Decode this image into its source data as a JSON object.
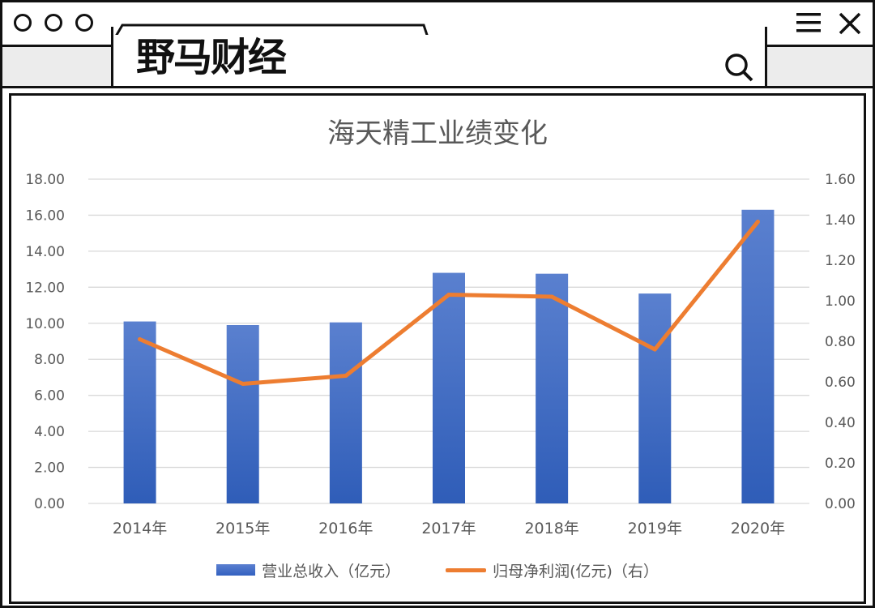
{
  "app": {
    "logo_text": "野马财经"
  },
  "window_controls": [
    "circle-icon",
    "circle-icon",
    "circle-icon"
  ],
  "toolbar_icons": [
    "menu-icon",
    "close-icon",
    "search-icon"
  ],
  "colors": {
    "bar": "#4472c4",
    "line": "#ed7d31",
    "grid": "#d9d9d9",
    "text": "#595959",
    "accent_logo": "#d32f2f"
  },
  "chart_data": {
    "type": "bar+line",
    "title": "海天精工业绩变化",
    "categories": [
      "2014年",
      "2015年",
      "2016年",
      "2017年",
      "2018年",
      "2019年",
      "2020年"
    ],
    "series": [
      {
        "name": "营业总收入（亿元）",
        "type": "bar",
        "axis": "left",
        "values": [
          10.1,
          9.9,
          10.05,
          12.8,
          12.75,
          11.65,
          16.3
        ]
      },
      {
        "name": "归母净利润(亿元)（右）",
        "type": "line",
        "axis": "right",
        "values": [
          0.81,
          0.59,
          0.63,
          1.03,
          1.02,
          0.76,
          1.39
        ]
      }
    ],
    "y_left": {
      "min": 0,
      "max": 18,
      "step": 2,
      "tick_labels": [
        "0.00",
        "2.00",
        "4.00",
        "6.00",
        "8.00",
        "10.00",
        "12.00",
        "14.00",
        "16.00",
        "18.00"
      ]
    },
    "y_right": {
      "min": 0,
      "max": 1.6,
      "step": 0.2,
      "tick_labels": [
        "0.00",
        "0.20",
        "0.40",
        "0.60",
        "0.80",
        "1.00",
        "1.20",
        "1.40",
        "1.60"
      ]
    },
    "grid": true,
    "legend_position": "bottom"
  }
}
